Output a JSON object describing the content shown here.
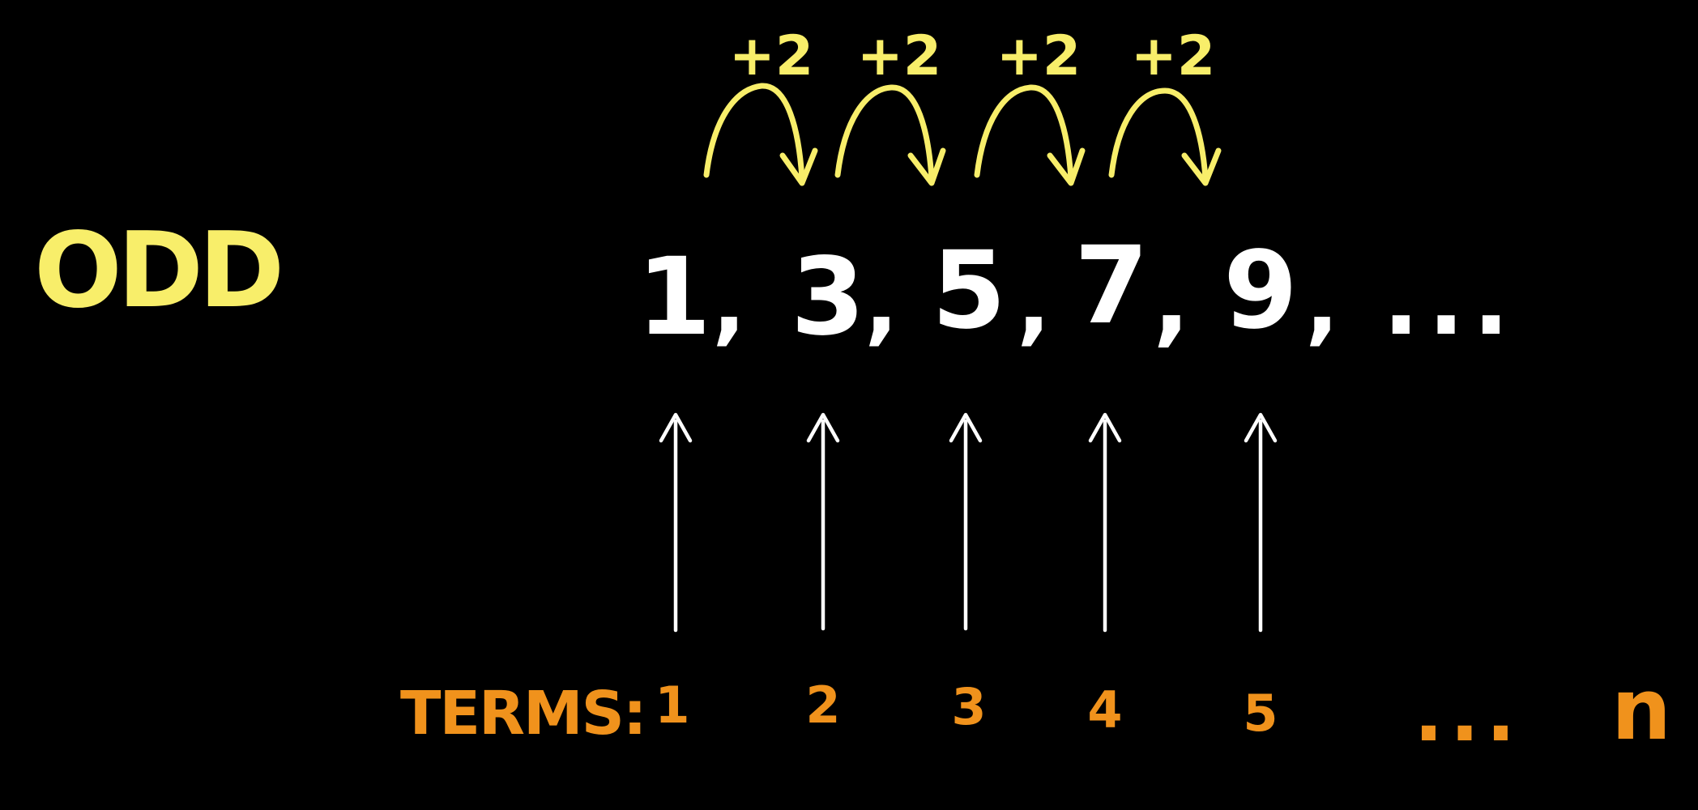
{
  "heading": {
    "label": "ODD",
    "color": "#f8ee6a"
  },
  "sequence": {
    "terms": [
      "1",
      "3",
      "5",
      "7",
      "9"
    ],
    "separator": ",",
    "ellipsis": "...",
    "color": "#ffffff"
  },
  "steps": {
    "labels": [
      "+2",
      "+2",
      "+2",
      "+2"
    ],
    "color": "#f8ee6a"
  },
  "term_row": {
    "label": "TERMS:",
    "indices": [
      "1",
      "2",
      "3",
      "4",
      "5"
    ],
    "ellipsis": "...",
    "last": "n",
    "color": "#f0921c"
  }
}
